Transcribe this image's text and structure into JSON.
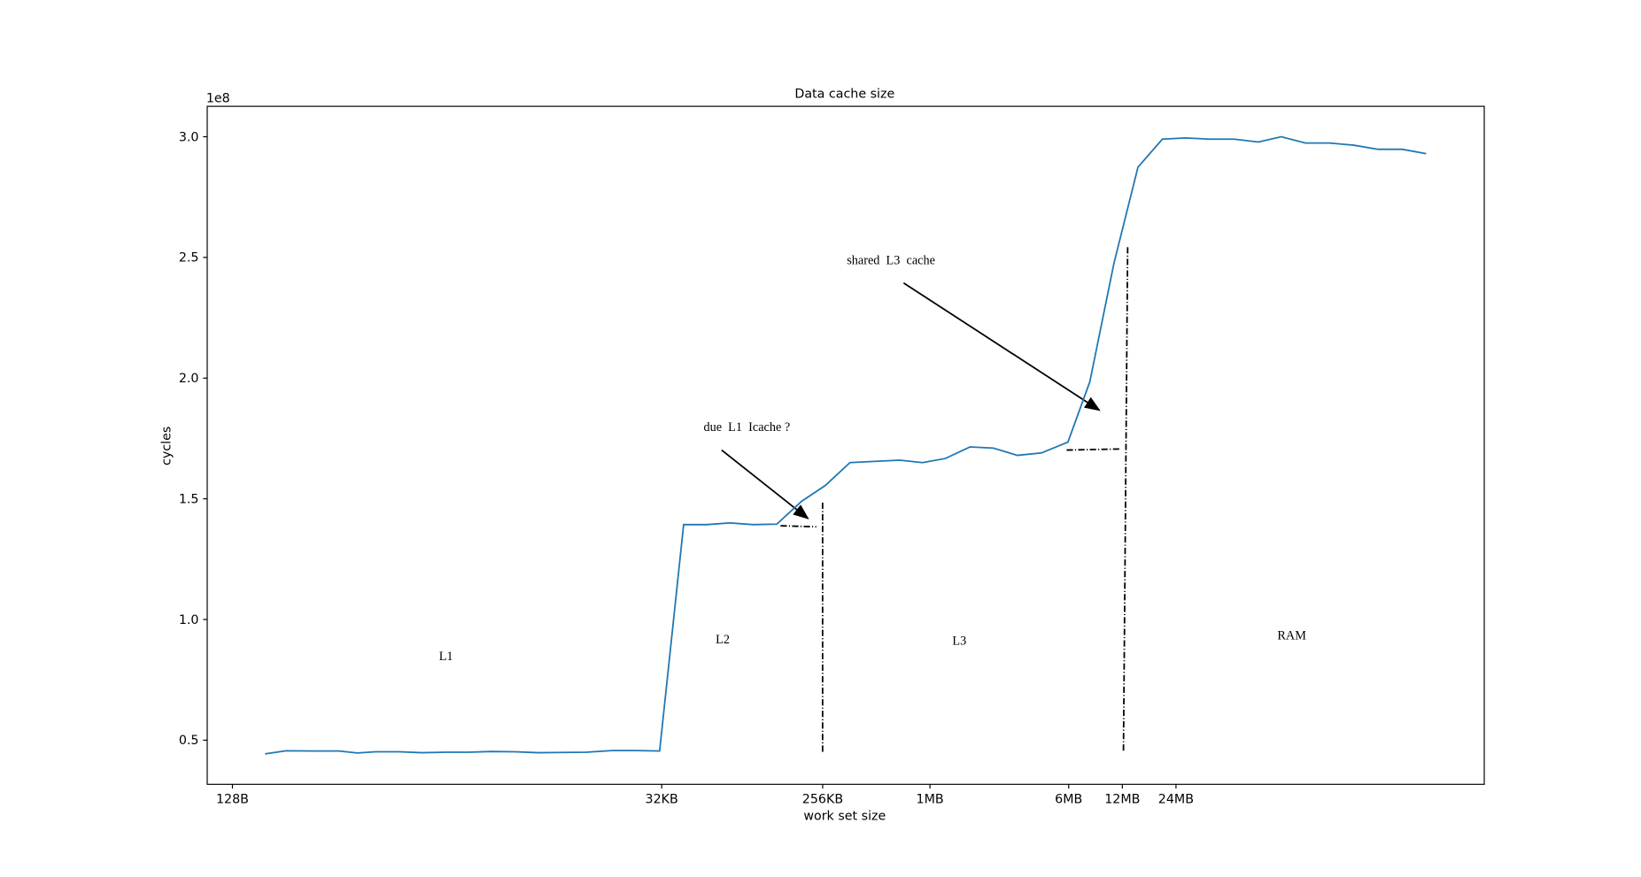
{
  "chart_data": {
    "type": "line",
    "title": "Data cache size",
    "x_label": "work set size",
    "y_label": "cycles",
    "y_offset_label": "1e8",
    "x_scale": "log2",
    "xlim": [
      92.4,
      1350000000
    ],
    "ylim": [
      31700000,
      312600000
    ],
    "xticks": [
      {
        "value": 128,
        "label": "128B"
      },
      {
        "value": 32768,
        "label": "32KB"
      },
      {
        "value": 262144,
        "label": "256KB"
      },
      {
        "value": 1048576,
        "label": "1MB"
      },
      {
        "value": 6291456,
        "label": "6MB"
      },
      {
        "value": 12582912,
        "label": "12MB"
      },
      {
        "value": 25165824,
        "label": "24MB"
      }
    ],
    "yticks": [
      {
        "value": 50000000,
        "label": "0.5"
      },
      {
        "value": 100000000,
        "label": "1.0"
      },
      {
        "value": 150000000,
        "label": "1.5"
      },
      {
        "value": 200000000,
        "label": "2.0"
      },
      {
        "value": 250000000,
        "label": "2.5"
      },
      {
        "value": 300000000,
        "label": "3.0"
      }
    ],
    "grid": false,
    "x": [
      195,
      256,
      360,
      506,
      643,
      812,
      1110,
      1480,
      1990,
      2690,
      3620,
      4930,
      6710,
      9140,
      12340,
      17300,
      23640,
      31900,
      43500,
      58600,
      79000,
      107000,
      145000,
      200000,
      271000,
      373000,
      510000,
      706000,
      952000,
      1280000,
      1760000,
      2380000,
      3240000,
      4430000,
      6230000,
      8270000,
      11300000,
      15400000,
      21100000,
      28400000,
      39000000,
      53400000,
      73000000,
      98000000,
      134000000,
      183000000,
      250000000,
      342000000,
      467000000,
      637000000
    ],
    "series": [
      {
        "name": "cycles",
        "color": "#1f77b4",
        "values": [
          44300000,
          45600000,
          45500000,
          45500000,
          44700000,
          45200000,
          45200000,
          44800000,
          45000000,
          45000000,
          45300000,
          45200000,
          44800000,
          44900000,
          45000000,
          45700000,
          45700000,
          45500000,
          139300000,
          139300000,
          140000000,
          139300000,
          139500000,
          149000000,
          155500000,
          165000000,
          165500000,
          166000000,
          165000000,
          166700000,
          171500000,
          171000000,
          168000000,
          169000000,
          173500000,
          198500000,
          247700000,
          287400000,
          299000000,
          299500000,
          299000000,
          299000000,
          297800000,
          300000000,
          297400000,
          297400000,
          296500000,
          294800000,
          294800000,
          293000000
        ]
      }
    ],
    "annotations": [
      "L1",
      "L2",
      "L3",
      "RAM",
      "due  L1  Icache ?",
      "shared  L3  cache"
    ]
  }
}
